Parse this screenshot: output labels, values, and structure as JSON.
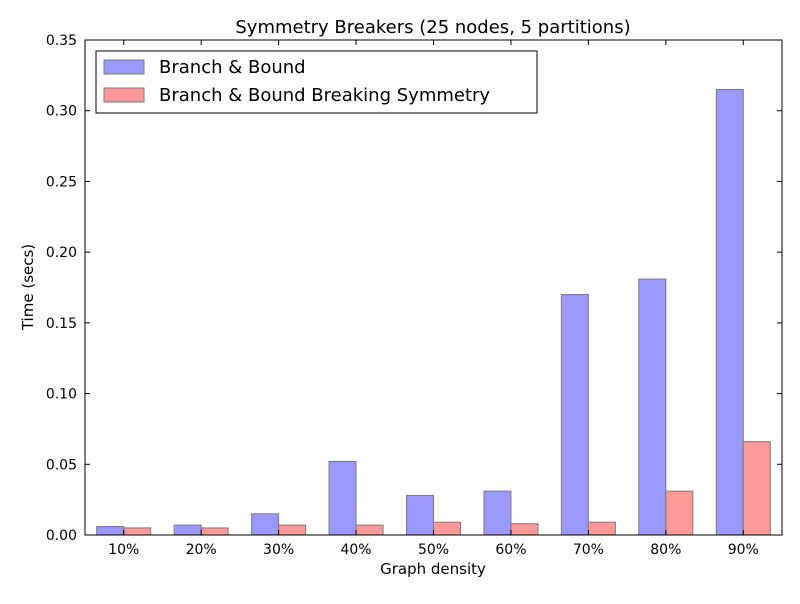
{
  "chart_data": {
    "type": "bar",
    "title": "Symmetry Breakers (25 nodes, 5 partitions)",
    "xlabel": "Graph density",
    "ylabel": "Time (secs)",
    "categories": [
      "10%",
      "20%",
      "30%",
      "40%",
      "50%",
      "60%",
      "70%",
      "80%",
      "90%"
    ],
    "series": [
      {
        "name": "Branch & Bound",
        "color": "#9999ff",
        "values": [
          0.006,
          0.007,
          0.015,
          0.052,
          0.028,
          0.031,
          0.17,
          0.181,
          0.315
        ]
      },
      {
        "name": "Branch & Bound Breaking Symmetry",
        "color": "#ff9999",
        "values": [
          0.005,
          0.005,
          0.007,
          0.007,
          0.009,
          0.008,
          0.009,
          0.031,
          0.066
        ]
      }
    ],
    "ylim": [
      0,
      0.35
    ],
    "yticks": [
      "0.00",
      "0.05",
      "0.10",
      "0.15",
      "0.20",
      "0.25",
      "0.30",
      "0.35"
    ],
    "legend_position": "top-left",
    "grid": false
  }
}
